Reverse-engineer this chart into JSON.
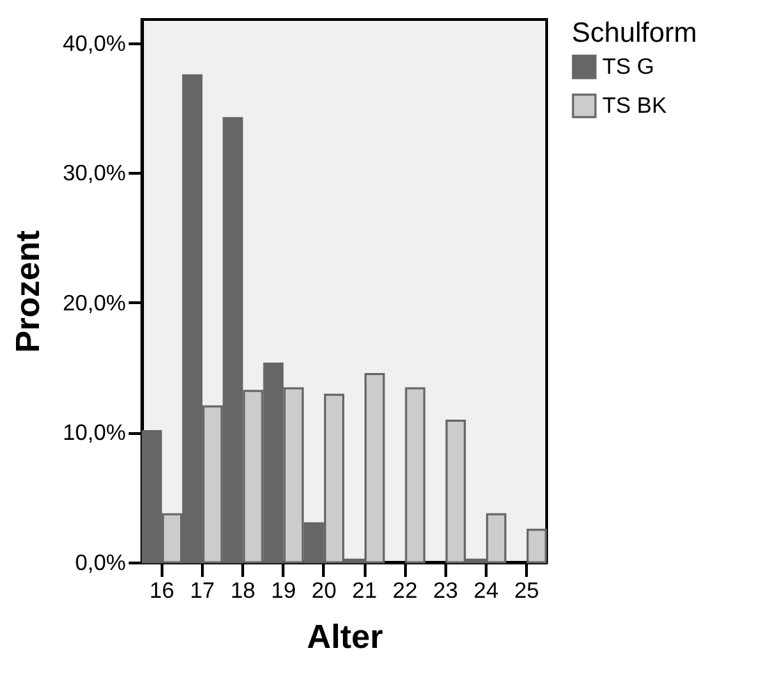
{
  "chart_data": {
    "type": "bar",
    "xlabel": "Alter",
    "ylabel": "Prozent",
    "legend_title": "Schulform",
    "legend": "top right",
    "categories": [
      "16",
      "17",
      "18",
      "19",
      "20",
      "21",
      "22",
      "23",
      "24",
      "25"
    ],
    "series": [
      {
        "name": "TS G",
        "color": "#666666",
        "values": [
          10.1,
          37.5,
          34.2,
          15.3,
          3.0,
          0.2,
          null,
          null,
          0.2,
          null
        ]
      },
      {
        "name": "TS BK",
        "color": "#cccccc",
        "values": [
          3.7,
          12.0,
          13.2,
          13.4,
          12.9,
          14.5,
          13.4,
          10.9,
          3.7,
          2.5
        ]
      }
    ],
    "ylim": [
      0,
      41.8
    ],
    "yticks": [
      {
        "value": 0,
        "label": "0,0%"
      },
      {
        "value": 10,
        "label": "10,0%"
      },
      {
        "value": 20,
        "label": "20,0%"
      },
      {
        "value": 30,
        "label": "30,0%"
      },
      {
        "value": 40,
        "label": "40,0%"
      }
    ]
  }
}
